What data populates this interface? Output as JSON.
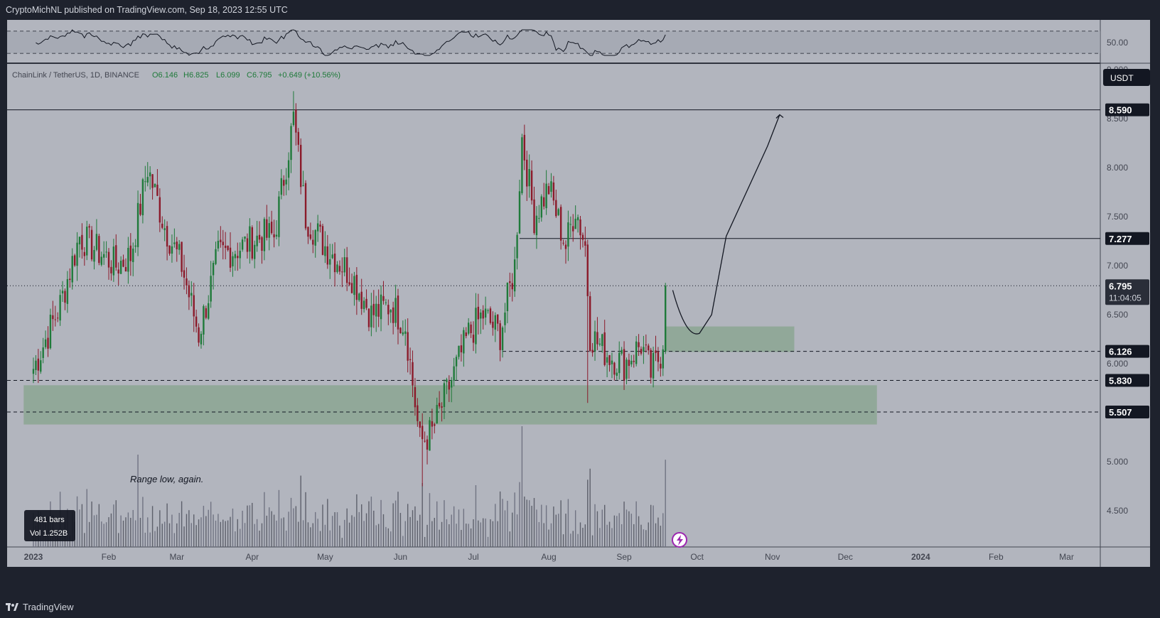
{
  "header": {
    "publish_text": "CryptoMichNL published on TradingView.com, Sep 18, 2023 12:55 UTC"
  },
  "footer": {
    "brand": "TradingView"
  },
  "rsi": {
    "level_label": "50.00"
  },
  "legend": {
    "pair": "ChainLink / TetherUS, 1D, BINANCE",
    "open": "O6.146",
    "high": "H6.825",
    "low": "L6.099",
    "close": "C6.795",
    "change": "+0.649 (+10.56%)"
  },
  "currency_badge": "USDT",
  "price_badges": {
    "level_8590": "8.590",
    "level_7277": "7.277",
    "last_price": "6.795",
    "countdown": "11:04:05",
    "level_6126": "6.126",
    "level_5830": "5.830",
    "level_5507": "5.507"
  },
  "annotation": "Range low, again.",
  "bars_info": {
    "bars": "481 bars",
    "vol": "Vol 1.252B"
  },
  "colors": {
    "up": "#1f7a3a",
    "down": "#8b1a2a",
    "zone": "#8fa897",
    "panel": "#b2b5be",
    "ui_dark": "#1e222d"
  },
  "chart_data": {
    "type": "candlestick",
    "symbol": "ChainLink / TetherUS",
    "interval": "1D",
    "exchange": "BINANCE",
    "ylim": [
      4.35,
      9.15
    ],
    "y_ticks": [
      9.0,
      8.5,
      8.0,
      7.5,
      7.0,
      6.5,
      6.0,
      5.5,
      5.0,
      4.5
    ],
    "x_ticks": [
      "2023",
      "Feb",
      "Mar",
      "Apr",
      "May",
      "Jun",
      "Jul",
      "Aug",
      "Sep",
      "Oct",
      "Nov",
      "Dec",
      "2024",
      "Feb",
      "Mar"
    ],
    "horizontal_levels": [
      8.59,
      7.277,
      6.795,
      6.126,
      5.83,
      5.507
    ],
    "zones": [
      {
        "from": "2022-12-28",
        "to": "2023-12-14",
        "low": 5.38,
        "high": 5.78
      },
      {
        "from": "2023-09-18",
        "to": "2023-11-10",
        "low": 6.12,
        "high": 6.38
      }
    ],
    "projection": [
      {
        "date": "2023-09-21",
        "price": 6.75
      },
      {
        "date": "2023-10-02",
        "price": 6.31
      },
      {
        "date": "2023-10-07",
        "price": 6.5
      },
      {
        "date": "2023-10-13",
        "price": 7.3
      },
      {
        "date": "2023-10-30",
        "price": 8.22
      },
      {
        "date": "2023-11-04",
        "price": 8.54
      }
    ],
    "anchors": [
      {
        "date": "2023-01-01",
        "price": 5.95
      },
      {
        "date": "2023-01-12",
        "price": 6.6
      },
      {
        "date": "2023-01-20",
        "price": 7.3
      },
      {
        "date": "2023-01-30",
        "price": 7.1
      },
      {
        "date": "2023-02-04",
        "price": 7.0
      },
      {
        "date": "2023-02-10",
        "price": 7.1
      },
      {
        "date": "2023-02-17",
        "price": 8.0
      },
      {
        "date": "2023-02-24",
        "price": 7.4
      },
      {
        "date": "2023-03-03",
        "price": 7.0
      },
      {
        "date": "2023-03-10",
        "price": 6.3
      },
      {
        "date": "2023-03-18",
        "price": 7.1
      },
      {
        "date": "2023-03-28",
        "price": 7.2
      },
      {
        "date": "2023-04-05",
        "price": 7.3
      },
      {
        "date": "2023-04-10",
        "price": 7.3
      },
      {
        "date": "2023-04-18",
        "price": 8.5
      },
      {
        "date": "2023-04-23",
        "price": 7.5
      },
      {
        "date": "2023-05-01",
        "price": 7.2
      },
      {
        "date": "2023-05-12",
        "price": 6.9
      },
      {
        "date": "2023-05-20",
        "price": 6.5
      },
      {
        "date": "2023-05-28",
        "price": 6.6
      },
      {
        "date": "2023-06-03",
        "price": 6.4
      },
      {
        "date": "2023-06-09",
        "price": 5.2
      },
      {
        "date": "2023-06-14",
        "price": 5.3
      },
      {
        "date": "2023-06-20",
        "price": 5.7
      },
      {
        "date": "2023-06-29",
        "price": 6.3
      },
      {
        "date": "2023-07-05",
        "price": 6.5
      },
      {
        "date": "2023-07-12",
        "price": 6.3
      },
      {
        "date": "2023-07-18",
        "price": 7.0
      },
      {
        "date": "2023-07-21",
        "price": 8.3
      },
      {
        "date": "2023-07-26",
        "price": 7.5
      },
      {
        "date": "2023-08-01",
        "price": 7.8
      },
      {
        "date": "2023-08-08",
        "price": 7.2
      },
      {
        "date": "2023-08-12",
        "price": 7.6
      },
      {
        "date": "2023-08-16",
        "price": 7.2
      },
      {
        "date": "2023-08-18",
        "price": 6.3
      },
      {
        "date": "2023-08-25",
        "price": 6.1
      },
      {
        "date": "2023-09-01",
        "price": 6.0
      },
      {
        "date": "2023-09-08",
        "price": 6.2
      },
      {
        "date": "2023-09-12",
        "price": 5.9
      },
      {
        "date": "2023-09-17",
        "price": 6.15
      },
      {
        "date": "2023-09-18",
        "price": 6.795
      }
    ]
  }
}
